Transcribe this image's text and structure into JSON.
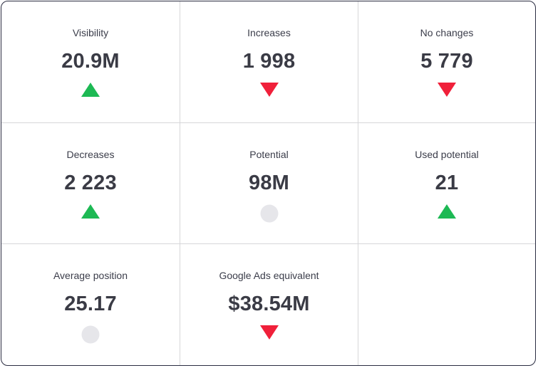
{
  "metrics": [
    {
      "label": "Visibility",
      "value": "20.9M",
      "trend": "up",
      "trend_icon": "triangle-up-icon"
    },
    {
      "label": "Increases",
      "value": "1 998",
      "trend": "down",
      "trend_icon": "triangle-down-icon"
    },
    {
      "label": "No changes",
      "value": "5 779",
      "trend": "down",
      "trend_icon": "triangle-down-icon"
    },
    {
      "label": "Decreases",
      "value": "2 223",
      "trend": "up",
      "trend_icon": "triangle-up-icon"
    },
    {
      "label": "Potential",
      "value": "98M",
      "trend": "neutral",
      "trend_icon": "circle-neutral-icon"
    },
    {
      "label": "Used potential",
      "value": "21",
      "trend": "up",
      "trend_icon": "triangle-up-icon"
    },
    {
      "label": "Average position",
      "value": "25.17",
      "trend": "neutral",
      "trend_icon": "circle-neutral-icon"
    },
    {
      "label": "Google Ads equivalent",
      "value": "$38.54M",
      "trend": "down",
      "trend_icon": "triangle-down-icon"
    }
  ],
  "colors": {
    "up": "#1db954",
    "down": "#f0203a",
    "neutral": "#e6e6ea",
    "border": "#2b2d42",
    "divider": "#d6d6d9",
    "text": "#3a3b45"
  }
}
